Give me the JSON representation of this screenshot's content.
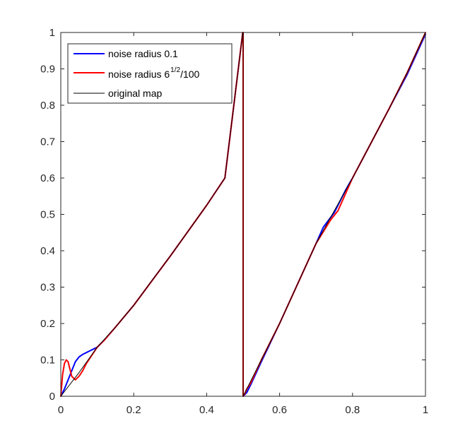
{
  "chart_data": {
    "type": "line",
    "title": "",
    "xlabel": "",
    "ylabel": "",
    "xlim": [
      0,
      1
    ],
    "ylim": [
      0,
      1
    ],
    "x_ticks": [
      "0",
      "0.2",
      "0.4",
      "0.6",
      "0.8",
      "1"
    ],
    "y_ticks": [
      "0",
      "0.1",
      "0.2",
      "0.3",
      "0.4",
      "0.5",
      "0.6",
      "0.7",
      "0.8",
      "0.9",
      "1"
    ],
    "grid": false,
    "legend_position": "top-left",
    "series": [
      {
        "name": "noise radius 0.1",
        "color": "#0000ff",
        "x": [
          0,
          0.01,
          0.02,
          0.03,
          0.04,
          0.05,
          0.06,
          0.07,
          0.08,
          0.09,
          0.1,
          0.12,
          0.15,
          0.2,
          0.3,
          0.4,
          0.45,
          0.499,
          0.5,
          0.5,
          0.51,
          0.52,
          0.55,
          0.6,
          0.7,
          0.72,
          0.75,
          0.78,
          0.8,
          0.9,
          0.95,
          1.0
        ],
        "y": [
          0,
          0.02,
          0.045,
          0.07,
          0.095,
          0.108,
          0.115,
          0.12,
          0.125,
          0.13,
          0.135,
          0.155,
          0.19,
          0.25,
          0.385,
          0.525,
          0.6,
          1.0,
          1.0,
          0.0,
          0.01,
          0.03,
          0.095,
          0.2,
          0.42,
          0.465,
          0.505,
          0.565,
          0.6,
          0.79,
          0.885,
          0.995
        ]
      },
      {
        "name": "noise radius 6^{1/2}/100",
        "color": "#ff0000",
        "x": [
          0,
          0.005,
          0.01,
          0.015,
          0.02,
          0.025,
          0.03,
          0.04,
          0.05,
          0.06,
          0.07,
          0.08,
          0.09,
          0.1,
          0.12,
          0.15,
          0.2,
          0.3,
          0.4,
          0.45,
          0.499,
          0.5,
          0.5,
          0.505,
          0.51,
          0.52,
          0.55,
          0.6,
          0.7,
          0.74,
          0.76,
          0.78,
          0.8,
          0.9,
          0.95,
          1.0
        ],
        "y": [
          0,
          0.06,
          0.09,
          0.1,
          0.095,
          0.075,
          0.055,
          0.045,
          0.055,
          0.07,
          0.09,
          0.105,
          0.12,
          0.135,
          0.155,
          0.19,
          0.25,
          0.385,
          0.525,
          0.6,
          1.0,
          1.0,
          0.0,
          0.008,
          0.02,
          0.035,
          0.1,
          0.2,
          0.42,
          0.485,
          0.51,
          0.555,
          0.6,
          0.79,
          0.89,
          1.0
        ]
      },
      {
        "name": "original map",
        "color": "#000000",
        "x": [
          0,
          0.05,
          0.1,
          0.15,
          0.2,
          0.25,
          0.3,
          0.35,
          0.4,
          0.45,
          0.499,
          0.5,
          0.5,
          0.55,
          0.6,
          0.65,
          0.7,
          0.75,
          0.8,
          0.85,
          0.9,
          0.95,
          1.0
        ],
        "y": [
          0,
          0.065,
          0.135,
          0.19,
          0.25,
          0.318,
          0.385,
          0.455,
          0.525,
          0.6,
          1.0,
          1.0,
          0.0,
          0.1,
          0.2,
          0.31,
          0.42,
          0.51,
          0.6,
          0.695,
          0.79,
          0.89,
          1.0
        ]
      }
    ]
  },
  "legend": {
    "item1": "noise radius 0.1",
    "item2_main": "noise radius 6",
    "item2_sup": "1/2",
    "item2_tail": "/100",
    "item3": "original map"
  }
}
